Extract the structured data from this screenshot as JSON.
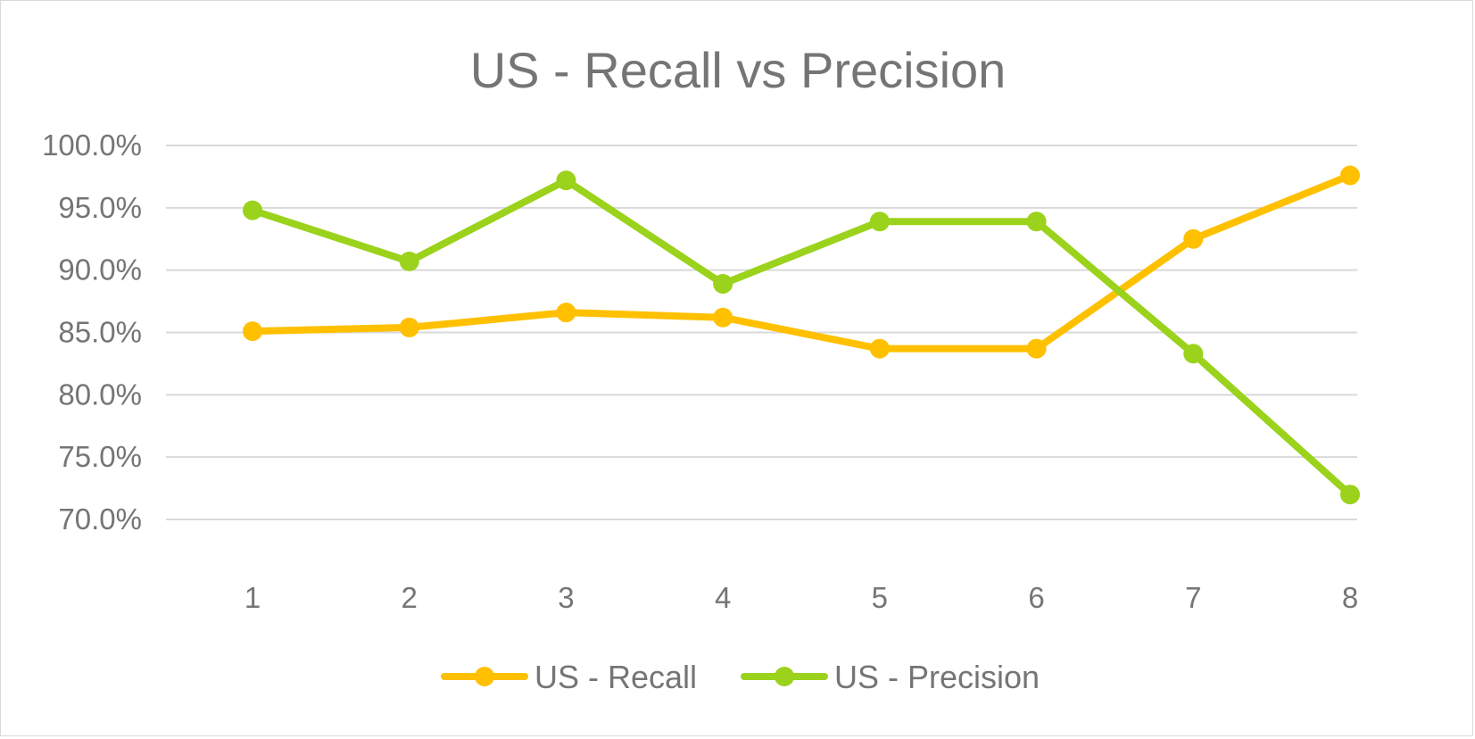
{
  "chart_data": {
    "type": "line",
    "title": "US - Recall vs Precision",
    "xlabel": "",
    "ylabel": "",
    "categories": [
      "1",
      "2",
      "3",
      "4",
      "5",
      "6",
      "7",
      "8"
    ],
    "y_ticks": [
      "70.0%",
      "75.0%",
      "80.0%",
      "85.0%",
      "90.0%",
      "95.0%",
      "100.0%"
    ],
    "ylim": [
      0.7,
      1.0
    ],
    "grid": true,
    "legend_position": "bottom",
    "series": [
      {
        "name": "US - Recall",
        "color": "#FFC000",
        "values": [
          0.851,
          0.854,
          0.866,
          0.862,
          0.837,
          0.837,
          0.925,
          0.976
        ]
      },
      {
        "name": "US - Precision",
        "color": "#9BD21C",
        "values": [
          0.948,
          0.907,
          0.972,
          0.889,
          0.939,
          0.939,
          0.833,
          0.72
        ]
      }
    ]
  }
}
